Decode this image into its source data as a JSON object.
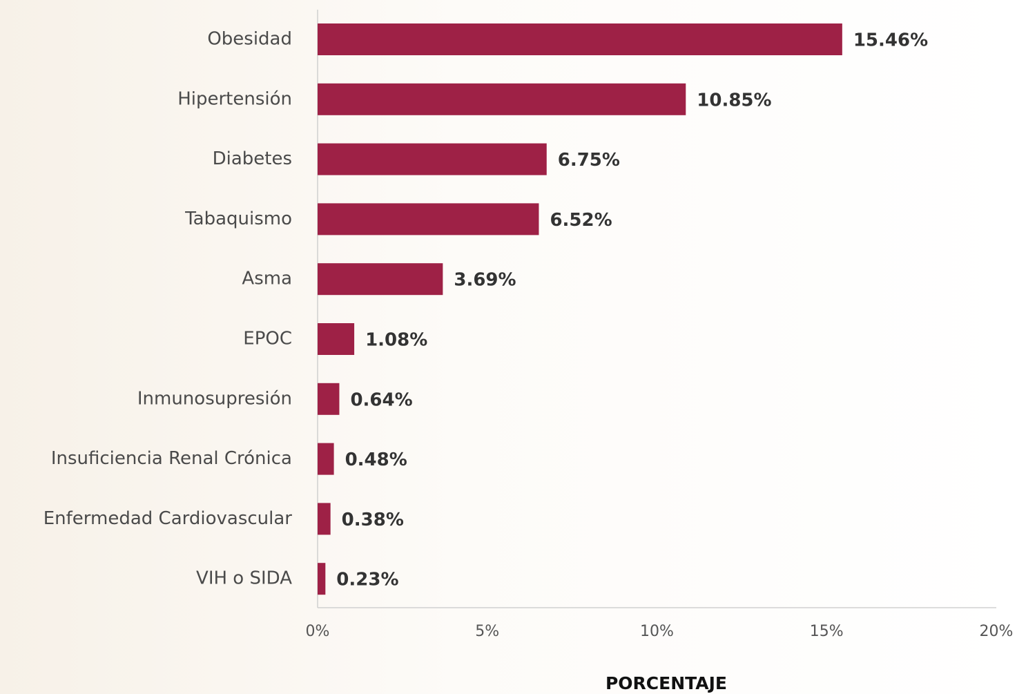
{
  "chart_data": {
    "type": "bar",
    "orientation": "horizontal",
    "categories": [
      "Obesidad",
      "Hipertensión",
      "Diabetes",
      "Tabaquismo",
      "Asma",
      "EPOC",
      "Inmunosupresión",
      "Insuficiencia Renal Crónica",
      "Enfermedad Cardiovascular",
      "VIH o SIDA"
    ],
    "values": [
      15.46,
      10.85,
      6.75,
      6.52,
      3.69,
      1.08,
      0.64,
      0.48,
      0.38,
      0.23
    ],
    "value_labels": [
      "15.46%",
      "10.85%",
      "6.75%",
      "6.52%",
      "3.69%",
      "1.08%",
      "0.64%",
      "0.48%",
      "0.38%",
      "0.23%"
    ],
    "color": "#9e2146",
    "xlabel": "PORCENTAJE",
    "xlim": [
      0,
      20
    ],
    "xticks": [
      {
        "value": 0,
        "label": "0%"
      },
      {
        "value": 5,
        "label": "5%"
      },
      {
        "value": 10,
        "label": "10%"
      },
      {
        "value": 15,
        "label": "15%"
      },
      {
        "value": 20,
        "label": "20%"
      }
    ],
    "grid": false
  }
}
